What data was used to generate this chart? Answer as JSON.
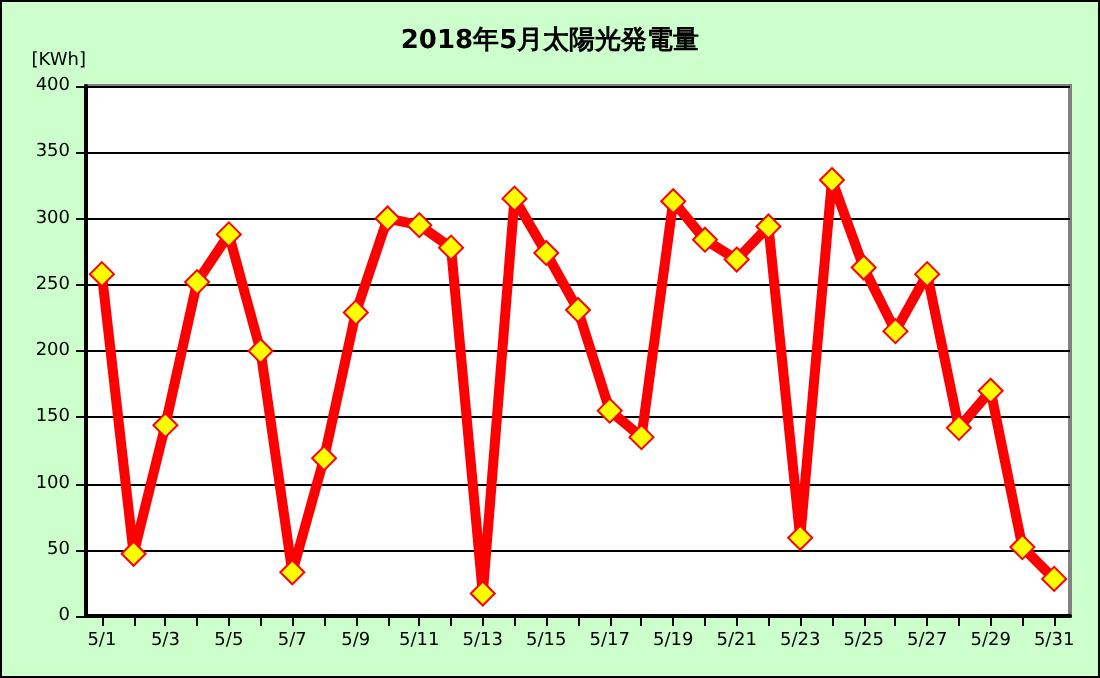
{
  "chart_data": {
    "type": "line",
    "title": "2018年5月太陽光発電量",
    "ylabel": "[KWh]",
    "categories": [
      "5/1",
      null,
      "5/3",
      null,
      "5/5",
      null,
      "5/7",
      null,
      "5/9",
      null,
      "5/11",
      null,
      "5/13",
      null,
      "5/15",
      null,
      "5/17",
      null,
      "5/19",
      null,
      "5/21",
      null,
      "5/23",
      null,
      "5/25",
      null,
      "5/27",
      null,
      "5/29",
      null,
      "5/31"
    ],
    "series": [
      {
        "color": "#ff0000",
        "values": [
          258,
          47,
          144,
          252,
          288,
          200,
          33,
          119,
          229,
          300,
          295,
          278,
          17,
          315,
          274,
          231,
          155,
          135,
          313,
          284,
          269,
          294,
          59,
          329,
          263,
          215,
          258,
          142,
          170,
          52,
          28
        ]
      }
    ],
    "ylim": [
      0,
      400
    ],
    "yticks": [
      0,
      50,
      100,
      150,
      200,
      250,
      300,
      350,
      400
    ],
    "grid": "y",
    "marker": "diamond",
    "line_style": "solid"
  }
}
